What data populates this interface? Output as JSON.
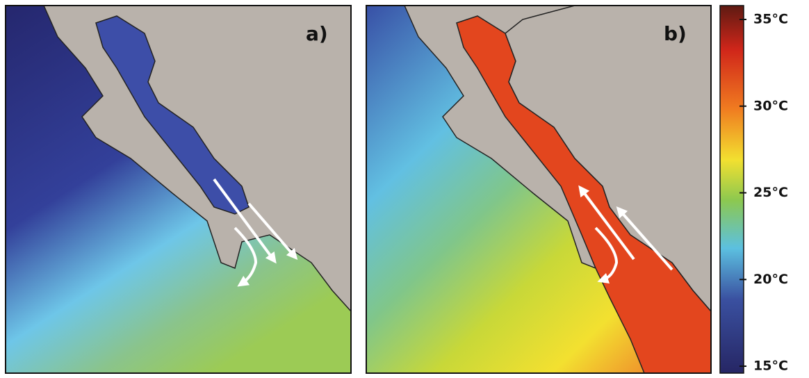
{
  "panels": [
    {
      "label": "a)"
    },
    {
      "label": "b)"
    }
  ],
  "colorbar": {
    "ticks": [
      {
        "value": 35,
        "label": "35°C"
      },
      {
        "value": 30,
        "label": "30°C"
      },
      {
        "value": 25,
        "label": "25°C"
      },
      {
        "value": 20,
        "label": "20°C"
      },
      {
        "value": 15,
        "label": "15°C"
      }
    ]
  }
}
